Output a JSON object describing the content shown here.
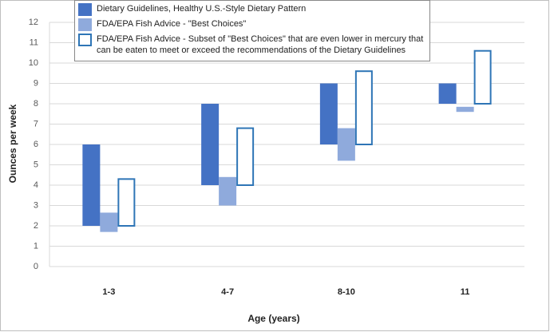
{
  "chart_data": {
    "type": "range-bar",
    "x_label": "Age (years)",
    "y_label": "Ounces per week",
    "categories": [
      "1-3",
      "4-7",
      "8-10",
      "11"
    ],
    "series": [
      {
        "name": "Dietary Guidelines, Healthy U.S.-Style Dietary Pattern",
        "color": "#4472c4",
        "fill": true,
        "low": [
          2,
          4,
          6,
          8
        ],
        "high": [
          6,
          8,
          9,
          9
        ]
      },
      {
        "name": "FDA/EPA Fish Advice - \"Best Choices\"",
        "color": "#8faadc",
        "fill": true,
        "low": [
          1.7,
          3,
          5.2,
          7.6
        ],
        "high": [
          2.65,
          4.4,
          6.8,
          7.85
        ]
      },
      {
        "name": "FDA/EPA Fish Advice - Subset of \"Best Choices\" that are even lower in mercury that can be eaten to meet or exceed the recommendations of the Dietary Guidelines",
        "color": "#2e75b6",
        "fill": false,
        "low": [
          2,
          4,
          6,
          8
        ],
        "high": [
          4.3,
          6.8,
          9.6,
          10.6
        ]
      }
    ],
    "ylim": [
      0,
      12
    ],
    "yticks": [
      0,
      1,
      2,
      3,
      4,
      5,
      6,
      7,
      8,
      9,
      10,
      11,
      12
    ],
    "grid": true
  }
}
